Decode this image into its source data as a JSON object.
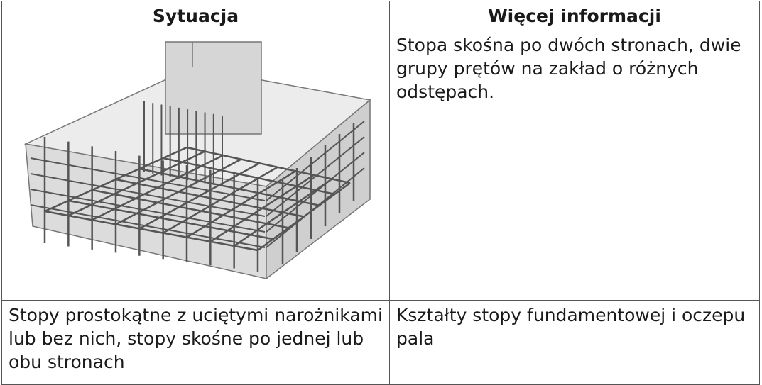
{
  "table": {
    "header": [
      "Sytuacja",
      "Więcej informacji"
    ],
    "rows": [
      [
        null,
        "Stopa skośna po dwóch stronach, dwie grupy prętów na zakład o różnych odstępach."
      ],
      [
        "Stopy prostokątne z uciętymi narożnikami lub bez nich, stopy skośne po jednej lub obu stronach",
        "Kształty stopy fundamentowej i oczepu pala"
      ]
    ]
  }
}
